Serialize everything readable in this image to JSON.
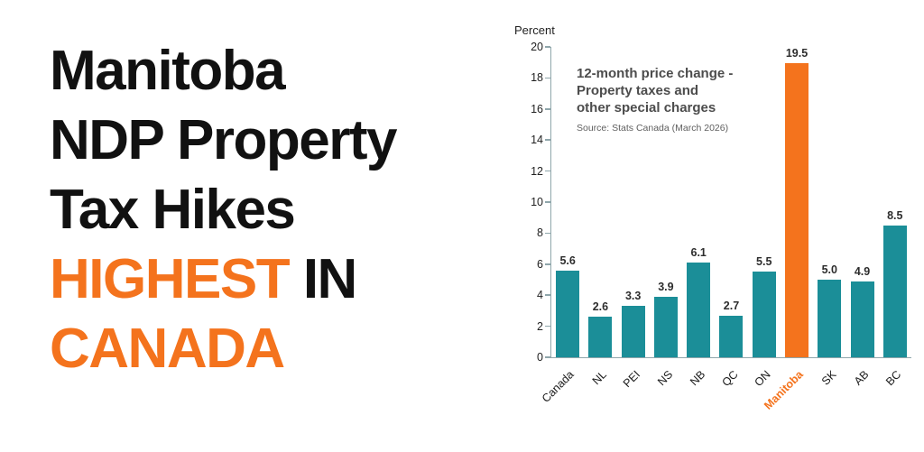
{
  "headline": {
    "line1": "Manitoba",
    "line2": "NDP Property",
    "line3": "Tax Hikes",
    "line4_orange": "HIGHEST",
    "line4_black": " IN",
    "line5": "CANADA",
    "black_color": "#111111",
    "accent_color": "#F4731D"
  },
  "chart_data": {
    "type": "bar",
    "categories": [
      "Canada",
      "NL",
      "PEI",
      "NS",
      "NB",
      "QC",
      "ON",
      "Manitoba",
      "SK",
      "AB",
      "BC"
    ],
    "values": [
      5.6,
      2.6,
      3.3,
      3.9,
      6.1,
      2.7,
      5.5,
      19.5,
      5.0,
      4.9,
      8.5
    ],
    "highlight_category": "Manitoba",
    "title": "12-month price change - Property taxes and other special charges",
    "title_lines": [
      "12-month price change -",
      "Property taxes and",
      "other special charges"
    ],
    "source": "Source: Stats Canada (March 2026)",
    "ylabel": "Percent",
    "xlabel": "",
    "ylim": [
      0,
      20
    ],
    "ytick_step": 2,
    "grid": false,
    "legend": false,
    "bar_color": "#1B8E98",
    "highlight_color": "#F4731D",
    "axis_color": "#8FA6AB"
  }
}
